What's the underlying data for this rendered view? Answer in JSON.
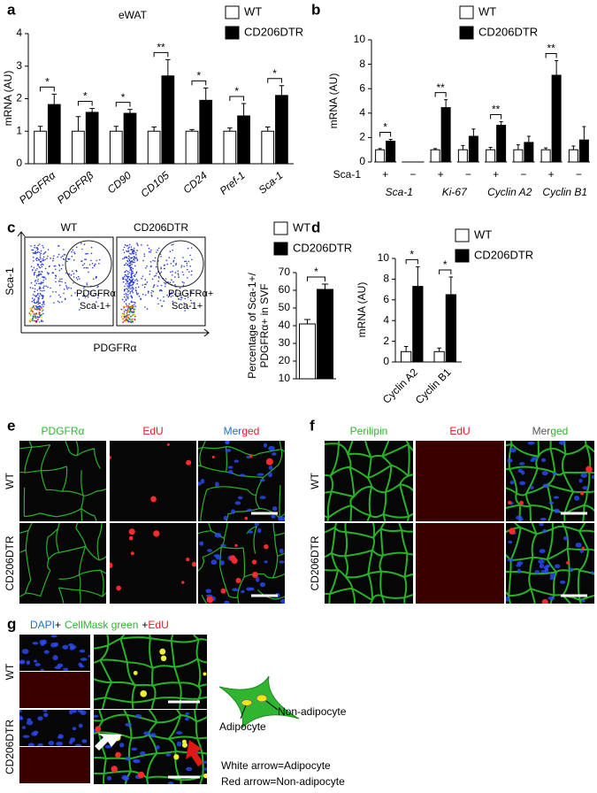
{
  "chart_data": [
    {
      "type": "bar",
      "label": "a",
      "title": "eWAT",
      "ylabel": "mRNA (AU)",
      "categories": [
        "PDGFRα",
        "PDGFRβ",
        "CD90",
        "CD105",
        "CD24",
        "Pref-1",
        "Sca-1"
      ],
      "series": [
        {
          "name": "WT",
          "color": "#ffffff",
          "values": [
            1,
            1,
            1,
            1,
            1,
            1,
            1
          ],
          "errors": [
            0.15,
            0.45,
            0.15,
            0.13,
            0.05,
            0.1,
            0.13
          ]
        },
        {
          "name": "CD206DTR",
          "color": "#000000",
          "values": [
            1.82,
            1.58,
            1.55,
            2.7,
            1.95,
            1.47,
            2.1
          ],
          "errors": [
            0.32,
            0.12,
            0.12,
            0.5,
            0.38,
            0.38,
            0.3
          ]
        }
      ],
      "significance": [
        "*",
        "*",
        "*",
        "**",
        "*",
        "*",
        "*"
      ],
      "ylim": [
        0,
        4
      ],
      "yticks": [
        0,
        1,
        2,
        3,
        4
      ]
    },
    {
      "type": "bar",
      "label": "b",
      "ylabel": "mRNA (AU)",
      "row_label": "Sca-1",
      "categories": [
        "+",
        "−",
        "+",
        "−",
        "+",
        "−",
        "+",
        "−"
      ],
      "groups": [
        "Sca-1",
        "Ki-67",
        "Cyclin A2",
        "Cyclin B1"
      ],
      "series": [
        {
          "name": "WT",
          "color": "#ffffff",
          "values": [
            1,
            null,
            1,
            1,
            1,
            1,
            1,
            1
          ],
          "errors": [
            0.1,
            null,
            0.1,
            0.35,
            0.2,
            0.4,
            0.15,
            0.3
          ]
        },
        {
          "name": "CD206DTR",
          "color": "#000000",
          "values": [
            1.7,
            null,
            4.45,
            2.1,
            3.0,
            1.6,
            7.1,
            1.8
          ],
          "errors": [
            0.15,
            null,
            0.65,
            0.6,
            0.3,
            0.5,
            1.2,
            1.1
          ]
        }
      ],
      "significance": [
        "*",
        null,
        "**",
        null,
        "**",
        null,
        "**",
        null
      ],
      "ylim": [
        0,
        10
      ],
      "yticks": [
        0,
        2,
        4,
        6,
        8,
        10
      ]
    },
    {
      "type": "bar",
      "label": "c",
      "ylabel": [
        "Percentage of Sca-1+/",
        "PDGFRα+ in SVF"
      ],
      "series": [
        {
          "name": "WT",
          "color": "#ffffff",
          "values": [
            41
          ],
          "errors": [
            2.5
          ]
        },
        {
          "name": "CD206DTR",
          "color": "#000000",
          "values": [
            60.5
          ],
          "errors": [
            3
          ]
        }
      ],
      "significance": [
        "*"
      ],
      "ylim": [
        10,
        70
      ],
      "yticks": [
        10,
        20,
        30,
        40,
        50,
        60,
        70
      ]
    },
    {
      "type": "bar",
      "label": "d",
      "ylabel": "mRNA (AU)",
      "categories": [
        "Cyclin A2",
        "Cyclin B1"
      ],
      "series": [
        {
          "name": "WT",
          "color": "#ffffff",
          "values": [
            1,
            1
          ],
          "errors": [
            0.5,
            0.35
          ]
        },
        {
          "name": "CD206DTR",
          "color": "#000000",
          "values": [
            7.3,
            6.5
          ],
          "errors": [
            1.9,
            1.7
          ]
        }
      ],
      "significance": [
        "*",
        "*"
      ],
      "ylim": [
        0,
        10
      ],
      "yticks": [
        0,
        2,
        4,
        6,
        8,
        10
      ]
    }
  ],
  "flow": {
    "samples": [
      "WT",
      "CD206DTR"
    ],
    "gate": [
      "PDGFRα+",
      "Sca-1+"
    ],
    "xlabel": "PDGFRα",
    "ylabel": "Sca-1"
  },
  "panel_e": {
    "label": "e",
    "columns": [
      [
        "PDGFRα"
      ],
      [
        "EdU"
      ],
      [
        "Mer",
        "ged"
      ]
    ],
    "rows": [
      "WT",
      "CD206DTR"
    ]
  },
  "panel_f": {
    "label": "f",
    "columns": [
      [
        "Perilipin"
      ],
      [
        "EdU"
      ],
      [
        "Mer",
        "ged"
      ]
    ],
    "rows": [
      "WT",
      "CD206DTR"
    ]
  },
  "panel_g": {
    "label": "g",
    "header": [
      "DAPI",
      "+",
      "CellMask green",
      "+",
      "EdU"
    ],
    "rows": [
      "WT",
      "CD206DTR"
    ],
    "diagram": {
      "non_adipocyte": "Non-adipocyte",
      "adipocyte": "Adipocyte"
    },
    "legend": [
      "White arrow=Adipocyte",
      "Red arrow=Non-adipocyte"
    ]
  }
}
